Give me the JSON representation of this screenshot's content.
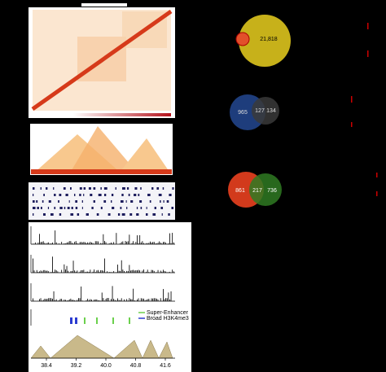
{
  "venn": [
    {
      "labels": [
        "21,818"
      ]
    },
    {
      "labels": [
        "965",
        "127",
        "134"
      ]
    },
    {
      "labels": [
        "861",
        "217",
        "736"
      ]
    }
  ],
  "legend": [
    "Super-Enhancer",
    "Broad H3K4me3"
  ],
  "x_axis": {
    "ticks": [
      "38.4",
      "39.2",
      "40.0",
      "40.8",
      "41.6"
    ]
  }
}
